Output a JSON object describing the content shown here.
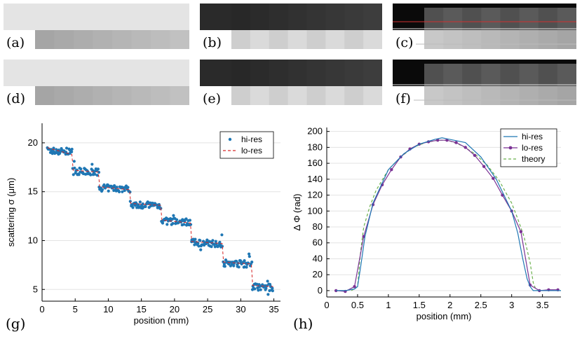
{
  "images": {
    "a": {
      "label": "(a)",
      "style": "light"
    },
    "b": {
      "label": "(b)",
      "style": "dark"
    },
    "c": {
      "label": "(c)",
      "style": "lines"
    },
    "d": {
      "label": "(d)",
      "style": "light"
    },
    "e": {
      "label": "(e)",
      "style": "dark"
    },
    "f": {
      "label": "(f)",
      "style": "lines"
    }
  },
  "chart_data": [
    {
      "id": "g",
      "panel_label": "(g)",
      "type": "scatter",
      "xlabel": "position (mm)",
      "ylabel": "scattering   σ (μm)",
      "xlim": [
        0,
        36
      ],
      "ylim": [
        3.8,
        22
      ],
      "xticks": [
        "0",
        "5",
        "10",
        "15",
        "20",
        "25",
        "30",
        "35"
      ],
      "yticks": [
        "5",
        "10",
        "15",
        "20"
      ],
      "legend": {
        "position": "top-right",
        "entries": [
          "hi-res",
          "lo-res"
        ]
      },
      "series": [
        {
          "name": "hi-res",
          "style": "dots",
          "color": "#1f77b4",
          "steps": [
            [
              0.8,
              4.6,
              19.2
            ],
            [
              4.6,
              8.6,
              17.1
            ],
            [
              8.6,
              13.3,
              15.4
            ],
            [
              13.3,
              18.0,
              13.7
            ],
            [
              18.0,
              22.5,
              12.0
            ],
            [
              22.5,
              27.3,
              9.8
            ],
            [
              27.3,
              31.7,
              7.7
            ],
            [
              31.7,
              34.9,
              5.3
            ]
          ]
        },
        {
          "name": "lo-res",
          "style": "dashed",
          "color": "#d62728",
          "x": [
            0.8,
            4.5,
            4.7,
            8.5,
            8.7,
            13.2,
            13.4,
            17.9,
            18.1,
            22.4,
            22.6,
            27.2,
            27.4,
            31.6,
            31.8,
            34.9
          ],
          "y": [
            19.5,
            18.8,
            17.2,
            17.0,
            15.5,
            15.2,
            13.8,
            13.6,
            12.1,
            11.8,
            9.9,
            9.7,
            7.8,
            7.6,
            5.4,
            5.3
          ]
        }
      ]
    },
    {
      "id": "h",
      "panel_label": "(h)",
      "type": "line",
      "xlabel": "position (mm)",
      "ylabel": "Δ Φ   (rad)",
      "xlim": [
        0,
        3.8
      ],
      "ylim": [
        -8,
        205
      ],
      "xticks": [
        "0",
        "0.5",
        "1",
        "1.5",
        "2",
        "2.5",
        "3",
        "3.5"
      ],
      "yticks": [
        "0",
        "20",
        "40",
        "60",
        "80",
        "100",
        "120",
        "140",
        "160",
        "180",
        "200"
      ],
      "legend": {
        "position": "top-right",
        "entries": [
          "hi-res",
          "lo-res",
          "theory"
        ]
      },
      "series": [
        {
          "name": "hi-res",
          "color": "#1f77b4",
          "style": "solid",
          "x": [
            0.15,
            0.3,
            0.45,
            0.5,
            0.55,
            0.62,
            0.75,
            1.0,
            1.25,
            1.5,
            1.75,
            1.87,
            2.0,
            2.25,
            2.5,
            2.75,
            3.0,
            3.1,
            3.18,
            3.25,
            3.3,
            3.35,
            3.5,
            3.7,
            3.8
          ],
          "y": [
            0,
            0,
            2,
            5,
            30,
            68,
            110,
            152,
            172,
            184,
            190,
            192,
            190,
            186,
            168,
            140,
            100,
            72,
            40,
            15,
            5,
            0,
            0,
            0,
            0
          ]
        },
        {
          "name": "lo-res",
          "color": "#7b3294",
          "style": "marker",
          "x": [
            0.15,
            0.3,
            0.45,
            0.6,
            0.75,
            0.9,
            1.05,
            1.2,
            1.35,
            1.5,
            1.65,
            1.8,
            1.95,
            2.1,
            2.25,
            2.4,
            2.55,
            2.7,
            2.85,
            3.0,
            3.15,
            3.3,
            3.45,
            3.6,
            3.75
          ],
          "y": [
            0,
            -1,
            5,
            68,
            108,
            133,
            152,
            168,
            178,
            184,
            187,
            189,
            189,
            186,
            180,
            170,
            156,
            141,
            120,
            100,
            74,
            7,
            0,
            1,
            1
          ]
        },
        {
          "name": "theory",
          "color": "#6ab04c",
          "style": "dashed",
          "x": [
            0.4,
            0.5,
            0.55,
            0.6,
            0.7,
            0.8,
            1.0,
            1.2,
            1.4,
            1.6,
            1.8,
            1.9,
            2.0,
            2.2,
            2.4,
            2.6,
            2.8,
            3.0,
            3.1,
            3.2,
            3.3,
            3.35,
            3.4,
            3.6,
            3.8
          ],
          "y": [
            0,
            5,
            50,
            80,
            106,
            126,
            152,
            168,
            180,
            186,
            189,
            189,
            188,
            182,
            172,
            158,
            138,
            110,
            90,
            68,
            35,
            10,
            0,
            0,
            0
          ]
        }
      ]
    }
  ]
}
